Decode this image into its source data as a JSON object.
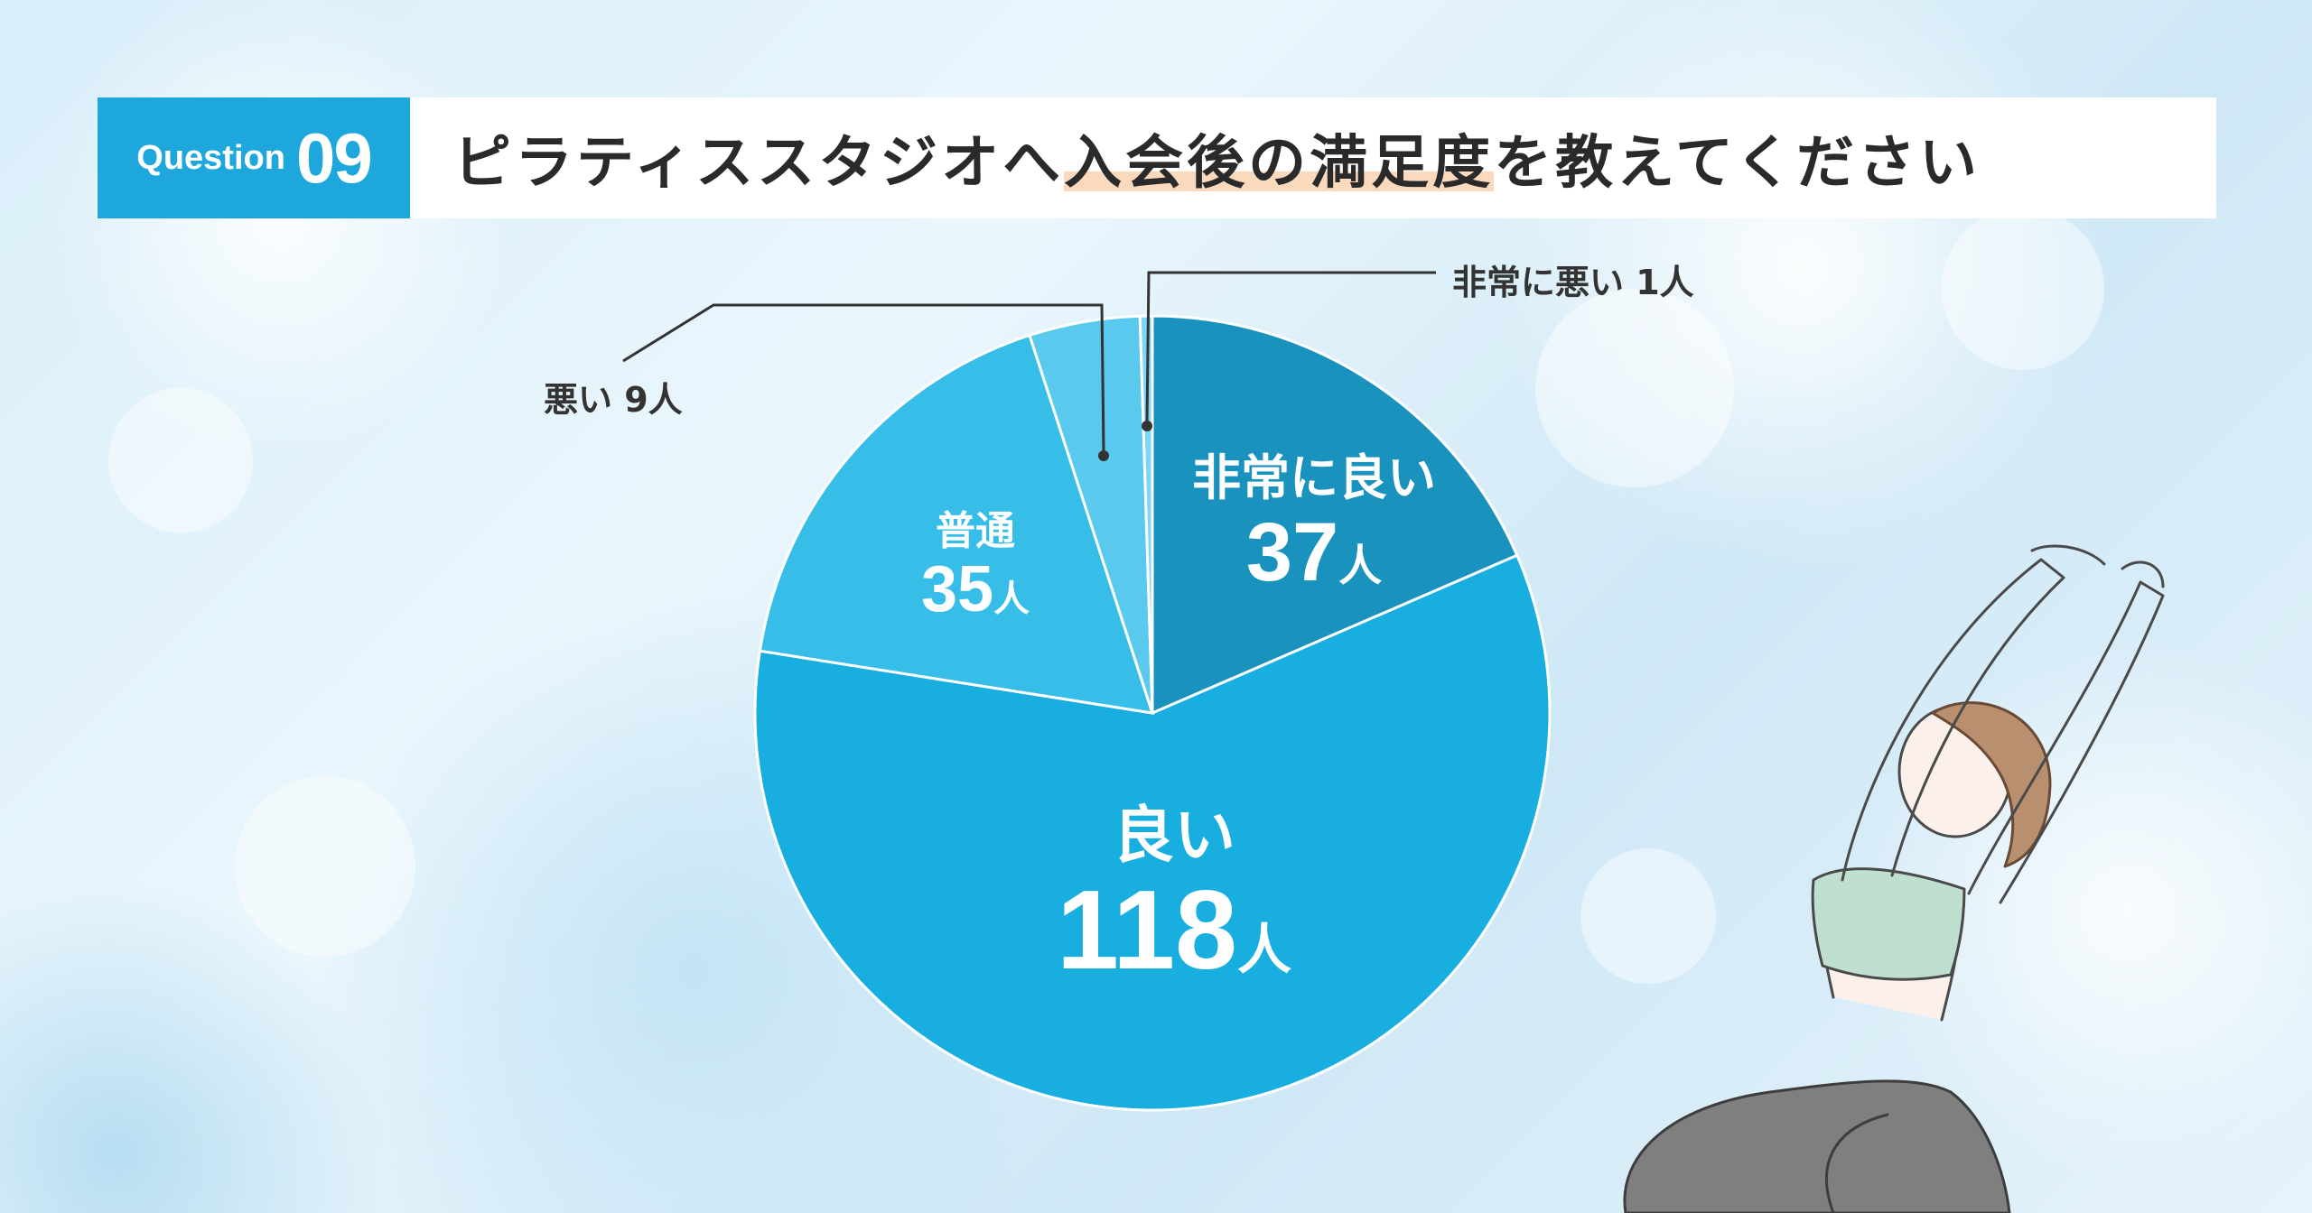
{
  "header": {
    "question_word": "Question",
    "question_number": "09",
    "title_before": "ピラティススタジオへ",
    "title_highlight": "入会後の満足度",
    "title_after": "を教えてください"
  },
  "chart_data": {
    "type": "pie",
    "start_angle_deg": 0,
    "direction": "clockwise",
    "slices": [
      {
        "label": "非常に良い",
        "value": 37,
        "unit": "人",
        "color": "#1a92be"
      },
      {
        "label": "良い",
        "value": 118,
        "unit": "人",
        "color": "#18aee0"
      },
      {
        "label": "普通",
        "value": 35,
        "unit": "人",
        "color": "#36bee8"
      },
      {
        "label": "悪い",
        "value": 9,
        "unit": "人",
        "color": "#5ac9ee"
      },
      {
        "label": "非常に悪い",
        "value": 1,
        "unit": "人",
        "color": "#7dd6f3"
      }
    ],
    "labels": {
      "very_good": {
        "name": "非常に良い",
        "value": "37",
        "unit": "人"
      },
      "good": {
        "name": "良い",
        "value": "118",
        "unit": "人"
      },
      "normal": {
        "name": "普通",
        "value": "35",
        "unit": "人"
      },
      "bad": {
        "text": "悪い 9人"
      },
      "very_bad": {
        "text": "非常に悪い 1人"
      }
    }
  },
  "colors": {
    "accent": "#1ea7dc",
    "title_highlight": "#fbd9bd",
    "leader_line": "#333333"
  },
  "illustration": {
    "subject": "woman-stretching-yoga"
  }
}
